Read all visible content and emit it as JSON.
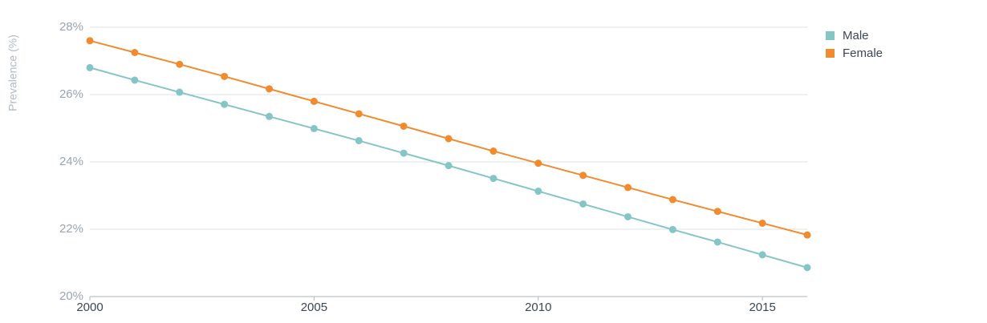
{
  "chart_data": {
    "type": "line",
    "title": "",
    "xlabel": "",
    "ylabel": "Prevalence (%)",
    "x": [
      2000,
      2001,
      2002,
      2003,
      2004,
      2005,
      2006,
      2007,
      2008,
      2009,
      2010,
      2011,
      2012,
      2013,
      2014,
      2015,
      2016
    ],
    "xlim": [
      2000,
      2016
    ],
    "ylim": [
      20,
      28
    ],
    "x_ticks": [
      "2000",
      "2005",
      "2010",
      "2015"
    ],
    "x_tick_values": [
      2000,
      2005,
      2010,
      2015
    ],
    "y_ticks": [
      "20%",
      "22%",
      "24%",
      "26%",
      "28%"
    ],
    "y_tick_values": [
      20,
      22,
      24,
      26,
      28
    ],
    "grid": "horizontal",
    "legend_position": "top-right",
    "series": [
      {
        "name": "Male",
        "color": "#86c5c6",
        "values": [
          26.8,
          26.43,
          26.07,
          25.71,
          25.35,
          24.99,
          24.63,
          24.26,
          23.89,
          23.51,
          23.13,
          22.75,
          22.37,
          21.99,
          21.62,
          21.24,
          20.86
        ]
      },
      {
        "name": "Female",
        "color": "#f28a2e",
        "values": [
          27.6,
          27.25,
          26.9,
          26.54,
          26.17,
          25.8,
          25.43,
          25.06,
          24.69,
          24.32,
          23.96,
          23.6,
          23.24,
          22.88,
          22.53,
          22.18,
          21.83
        ]
      }
    ]
  }
}
